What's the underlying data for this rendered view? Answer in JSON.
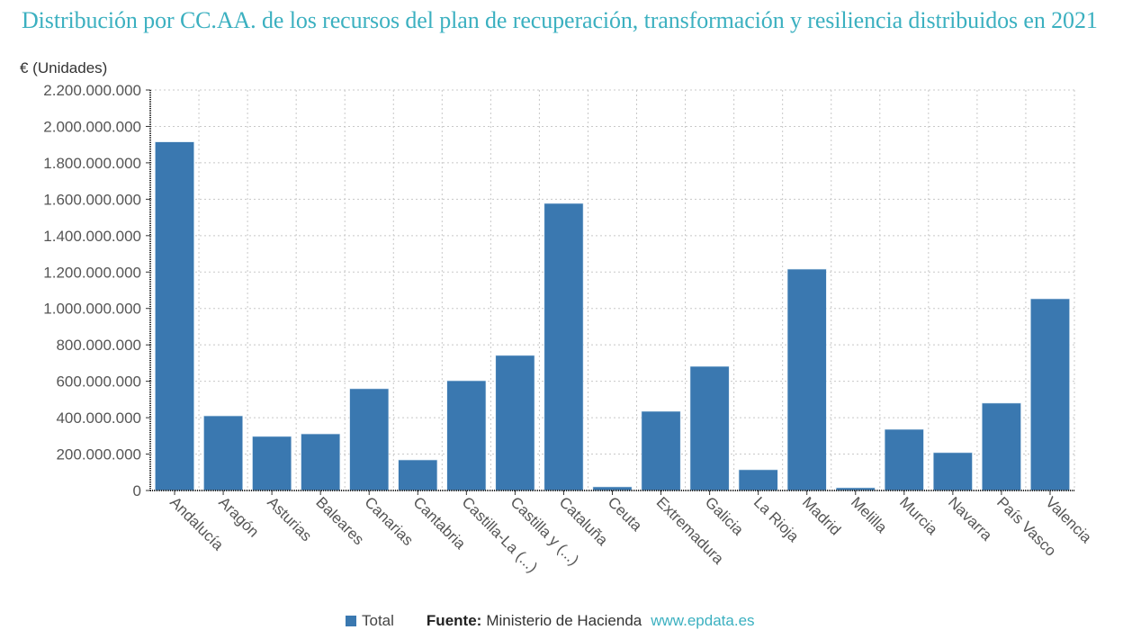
{
  "chart_data": {
    "type": "bar",
    "title": "Distribución por CC.AA. de los recursos del plan de recuperación, transformación y resiliencia distribuidos en 2021",
    "ylabel": "€ (Unidades)",
    "xlabel": "",
    "ylim": [
      0,
      2200000000
    ],
    "yticks": [
      0,
      200000000,
      400000000,
      600000000,
      800000000,
      1000000000,
      1200000000,
      1400000000,
      1600000000,
      1800000000,
      2000000000,
      2200000000
    ],
    "ytick_labels": [
      "0",
      "200.000.000",
      "400.000.000",
      "600.000.000",
      "800.000.000",
      "1.000.000.000",
      "1.200.000.000",
      "1.400.000.000",
      "1.600.000.000",
      "1.800.000.000",
      "2.000.000.000",
      "2.200.000.000"
    ],
    "grid": true,
    "categories": [
      "Andalucía",
      "Aragón",
      "Asturias",
      "Baleares",
      "Canarias",
      "Cantabria",
      "Castilla-La (...)",
      "Castilla y (...)",
      "Cataluña",
      "Ceuta",
      "Extremadura",
      "Galicia",
      "La Rioja",
      "Madrid",
      "Melilla",
      "Murcia",
      "Navarra",
      "País Vasco",
      "Valencia"
    ],
    "series": [
      {
        "name": "Total",
        "color": "#3a78b0",
        "values": [
          1915000000,
          410000000,
          297000000,
          311000000,
          559000000,
          168000000,
          603000000,
          742000000,
          1577000000,
          20000000,
          435000000,
          682000000,
          114000000,
          1216000000,
          15000000,
          336000000,
          208000000,
          480000000,
          1053000000
        ]
      }
    ],
    "legend": {
      "position": "bottom"
    }
  },
  "footer": {
    "legend_label": "Total",
    "source_label": "Fuente:",
    "source_value": "Ministerio de Hacienda",
    "site": "www.epdata.es"
  },
  "colors": {
    "title": "#3bb0c0",
    "bar": "#3a78b0",
    "grid": "#c8c8c8"
  }
}
